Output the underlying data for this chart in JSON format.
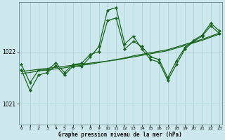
{
  "title": "Graphe pression niveau de la mer (hPa)",
  "bg_color": "#cce8ec",
  "grid_color": "#aacdd4",
  "line_color": "#1a6620",
  "xlim": [
    -0.3,
    23.3
  ],
  "ylim": [
    1020.6,
    1022.95
  ],
  "yticks": [
    1021.0,
    1022.0
  ],
  "xticks": [
    0,
    1,
    2,
    3,
    4,
    5,
    6,
    7,
    8,
    9,
    10,
    11,
    12,
    13,
    14,
    15,
    16,
    17,
    18,
    19,
    20,
    21,
    22,
    23
  ],
  "series": {
    "jagged1": [
      1021.65,
      1021.25,
      1021.55,
      1021.6,
      1021.73,
      1021.55,
      1021.72,
      1021.72,
      1021.9,
      1022.1,
      1022.8,
      1022.85,
      1022.15,
      1022.3,
      1022.05,
      1021.85,
      1021.8,
      1021.45,
      1021.75,
      1022.05,
      1022.2,
      1022.3,
      1022.5,
      1022.35
    ],
    "jagged2": [
      1021.75,
      1021.4,
      1021.65,
      1021.65,
      1021.78,
      1021.6,
      1021.75,
      1021.78,
      1021.95,
      1022.0,
      1022.6,
      1022.65,
      1022.05,
      1022.2,
      1022.1,
      1021.9,
      1021.85,
      1021.5,
      1021.82,
      1022.08,
      1022.22,
      1022.32,
      1022.55,
      1022.4
    ],
    "trend1": [
      1021.62,
      1021.64,
      1021.66,
      1021.68,
      1021.7,
      1021.72,
      1021.74,
      1021.76,
      1021.78,
      1021.8,
      1021.82,
      1021.84,
      1021.87,
      1021.9,
      1021.93,
      1021.96,
      1021.99,
      1022.02,
      1022.07,
      1022.12,
      1022.17,
      1022.22,
      1022.28,
      1022.34
    ],
    "trend2": [
      1021.58,
      1021.6,
      1021.63,
      1021.65,
      1021.67,
      1021.69,
      1021.72,
      1021.74,
      1021.76,
      1021.79,
      1021.82,
      1021.85,
      1021.88,
      1021.92,
      1021.95,
      1021.98,
      1022.01,
      1022.04,
      1022.09,
      1022.14,
      1022.19,
      1022.24,
      1022.3,
      1022.36
    ]
  }
}
